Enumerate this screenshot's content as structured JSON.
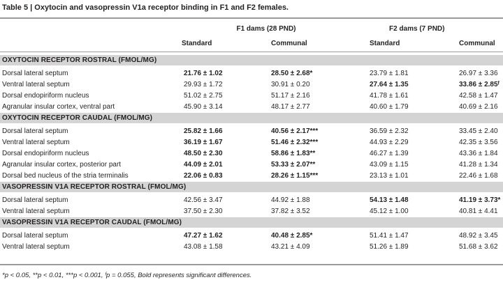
{
  "caption": "Table 5 | Oxytocin and vasopressin V1a receptor binding in F1 and F2 females.",
  "groups": {
    "f1": "F1 dams (28 PND)",
    "f2": "F2 dams (7 PND)"
  },
  "subheaders": [
    "Standard",
    "Communal",
    "Standard",
    "Communal"
  ],
  "sections": [
    {
      "title": "OXYTOCIN RECEPTOR ROSTRAL (FMOL/MG)",
      "rows": [
        {
          "label": "Dorsal lateral septum",
          "v": [
            "21.76 ± 1.02",
            "28.50 ± 2.68*",
            "23.79 ± 1.81",
            "26.97 ± 3.36"
          ],
          "bold": [
            true,
            true,
            false,
            false
          ]
        },
        {
          "label": "Ventral lateral septum",
          "v": [
            "29.93 ± 1.72",
            "30.91 ± 0.20",
            "27.64 ± 1.35",
            "33.86 ± 2.85ᶠ"
          ],
          "bold": [
            false,
            false,
            true,
            true
          ]
        },
        {
          "label": "Dorsal endopiriform nucleus",
          "v": [
            "51.02 ± 2.75",
            "51.17 ± 2.16",
            "41.78 ± 1.61",
            "42.58 ± 1.47"
          ],
          "bold": [
            false,
            false,
            false,
            false
          ]
        },
        {
          "label": "Agranular insular cortex, ventral part",
          "v": [
            "45.90 ± 3.14",
            "48.17 ± 2.77",
            "40.60 ± 1.79",
            "40.69 ± 2.16"
          ],
          "bold": [
            false,
            false,
            false,
            false
          ]
        }
      ]
    },
    {
      "title": "OXYTOCIN RECEPTOR CAUDAL (FMOL/MG)",
      "rows": [
        {
          "label": "Dorsal lateral septum",
          "v": [
            "25.82 ± 1.66",
            "40.56 ± 2.17***",
            "36.59 ± 2.32",
            "33.45 ± 2.40"
          ],
          "bold": [
            true,
            true,
            false,
            false
          ]
        },
        {
          "label": "Ventral lateral septum",
          "v": [
            "36.19 ± 1.67",
            "51.46 ± 2.32***",
            "44.93 ± 2.29",
            "42.35 ± 3.56"
          ],
          "bold": [
            true,
            true,
            false,
            false
          ]
        },
        {
          "label": "Dorsal endopiriform nucleus",
          "v": [
            "48.50 ± 2.30",
            "58.86 ± 1.83**",
            "46.27 ± 1.39",
            "43.36 ± 1.84"
          ],
          "bold": [
            true,
            true,
            false,
            false
          ]
        },
        {
          "label": "Agranular insular cortex, posterior part",
          "v": [
            "44.09 ± 2.01",
            "53.33 ± 2.07**",
            "43.09 ± 1.15",
            "41.28 ± 1.34"
          ],
          "bold": [
            true,
            true,
            false,
            false
          ]
        },
        {
          "label": "Dorsal bed nucleus of the stria terminalis",
          "v": [
            "22.06 ± 0.83",
            "28.26 ± 1.15***",
            "23.13 ± 1.01",
            "22.46 ± 1.68"
          ],
          "bold": [
            true,
            true,
            false,
            false
          ]
        }
      ]
    },
    {
      "title": "VASOPRESSIN V1A RECEPTOR ROSTRAL (FMOL/MG)",
      "rows": [
        {
          "label": "Dorsal lateral septum",
          "v": [
            "42.56 ± 3.47",
            "44.92 ± 1.88",
            "54.13 ± 1.48",
            "41.19 ± 3.73*"
          ],
          "bold": [
            false,
            false,
            true,
            true
          ]
        },
        {
          "label": "Ventral lateral septum",
          "v": [
            "37.50 ± 2.30",
            "37.82 ± 3.52",
            "45.12 ± 1.00",
            "40.81 ± 4.41"
          ],
          "bold": [
            false,
            false,
            false,
            false
          ]
        }
      ]
    },
    {
      "title": "VASOPRESSIN V1A RECEPTOR CAUDAL (FMOL/MG)",
      "rows": [
        {
          "label": "Dorsal lateral septum",
          "v": [
            "47.27 ± 1.62",
            "40.48 ± 2.85*",
            "51.41 ± 1.47",
            "48.92 ± 3.45"
          ],
          "bold": [
            true,
            true,
            false,
            false
          ]
        },
        {
          "label": "Ventral lateral septum",
          "v": [
            "43.08 ± 1.58",
            "43.21 ± 4.09",
            "51.26 ± 1.89",
            "51.68 ± 3.62"
          ],
          "bold": [
            false,
            false,
            false,
            false
          ]
        }
      ]
    }
  ],
  "footnote": "*p < 0.05, **p < 0.01, ***p < 0.001, ᶠp = 0.055, Bold represents significant differences."
}
